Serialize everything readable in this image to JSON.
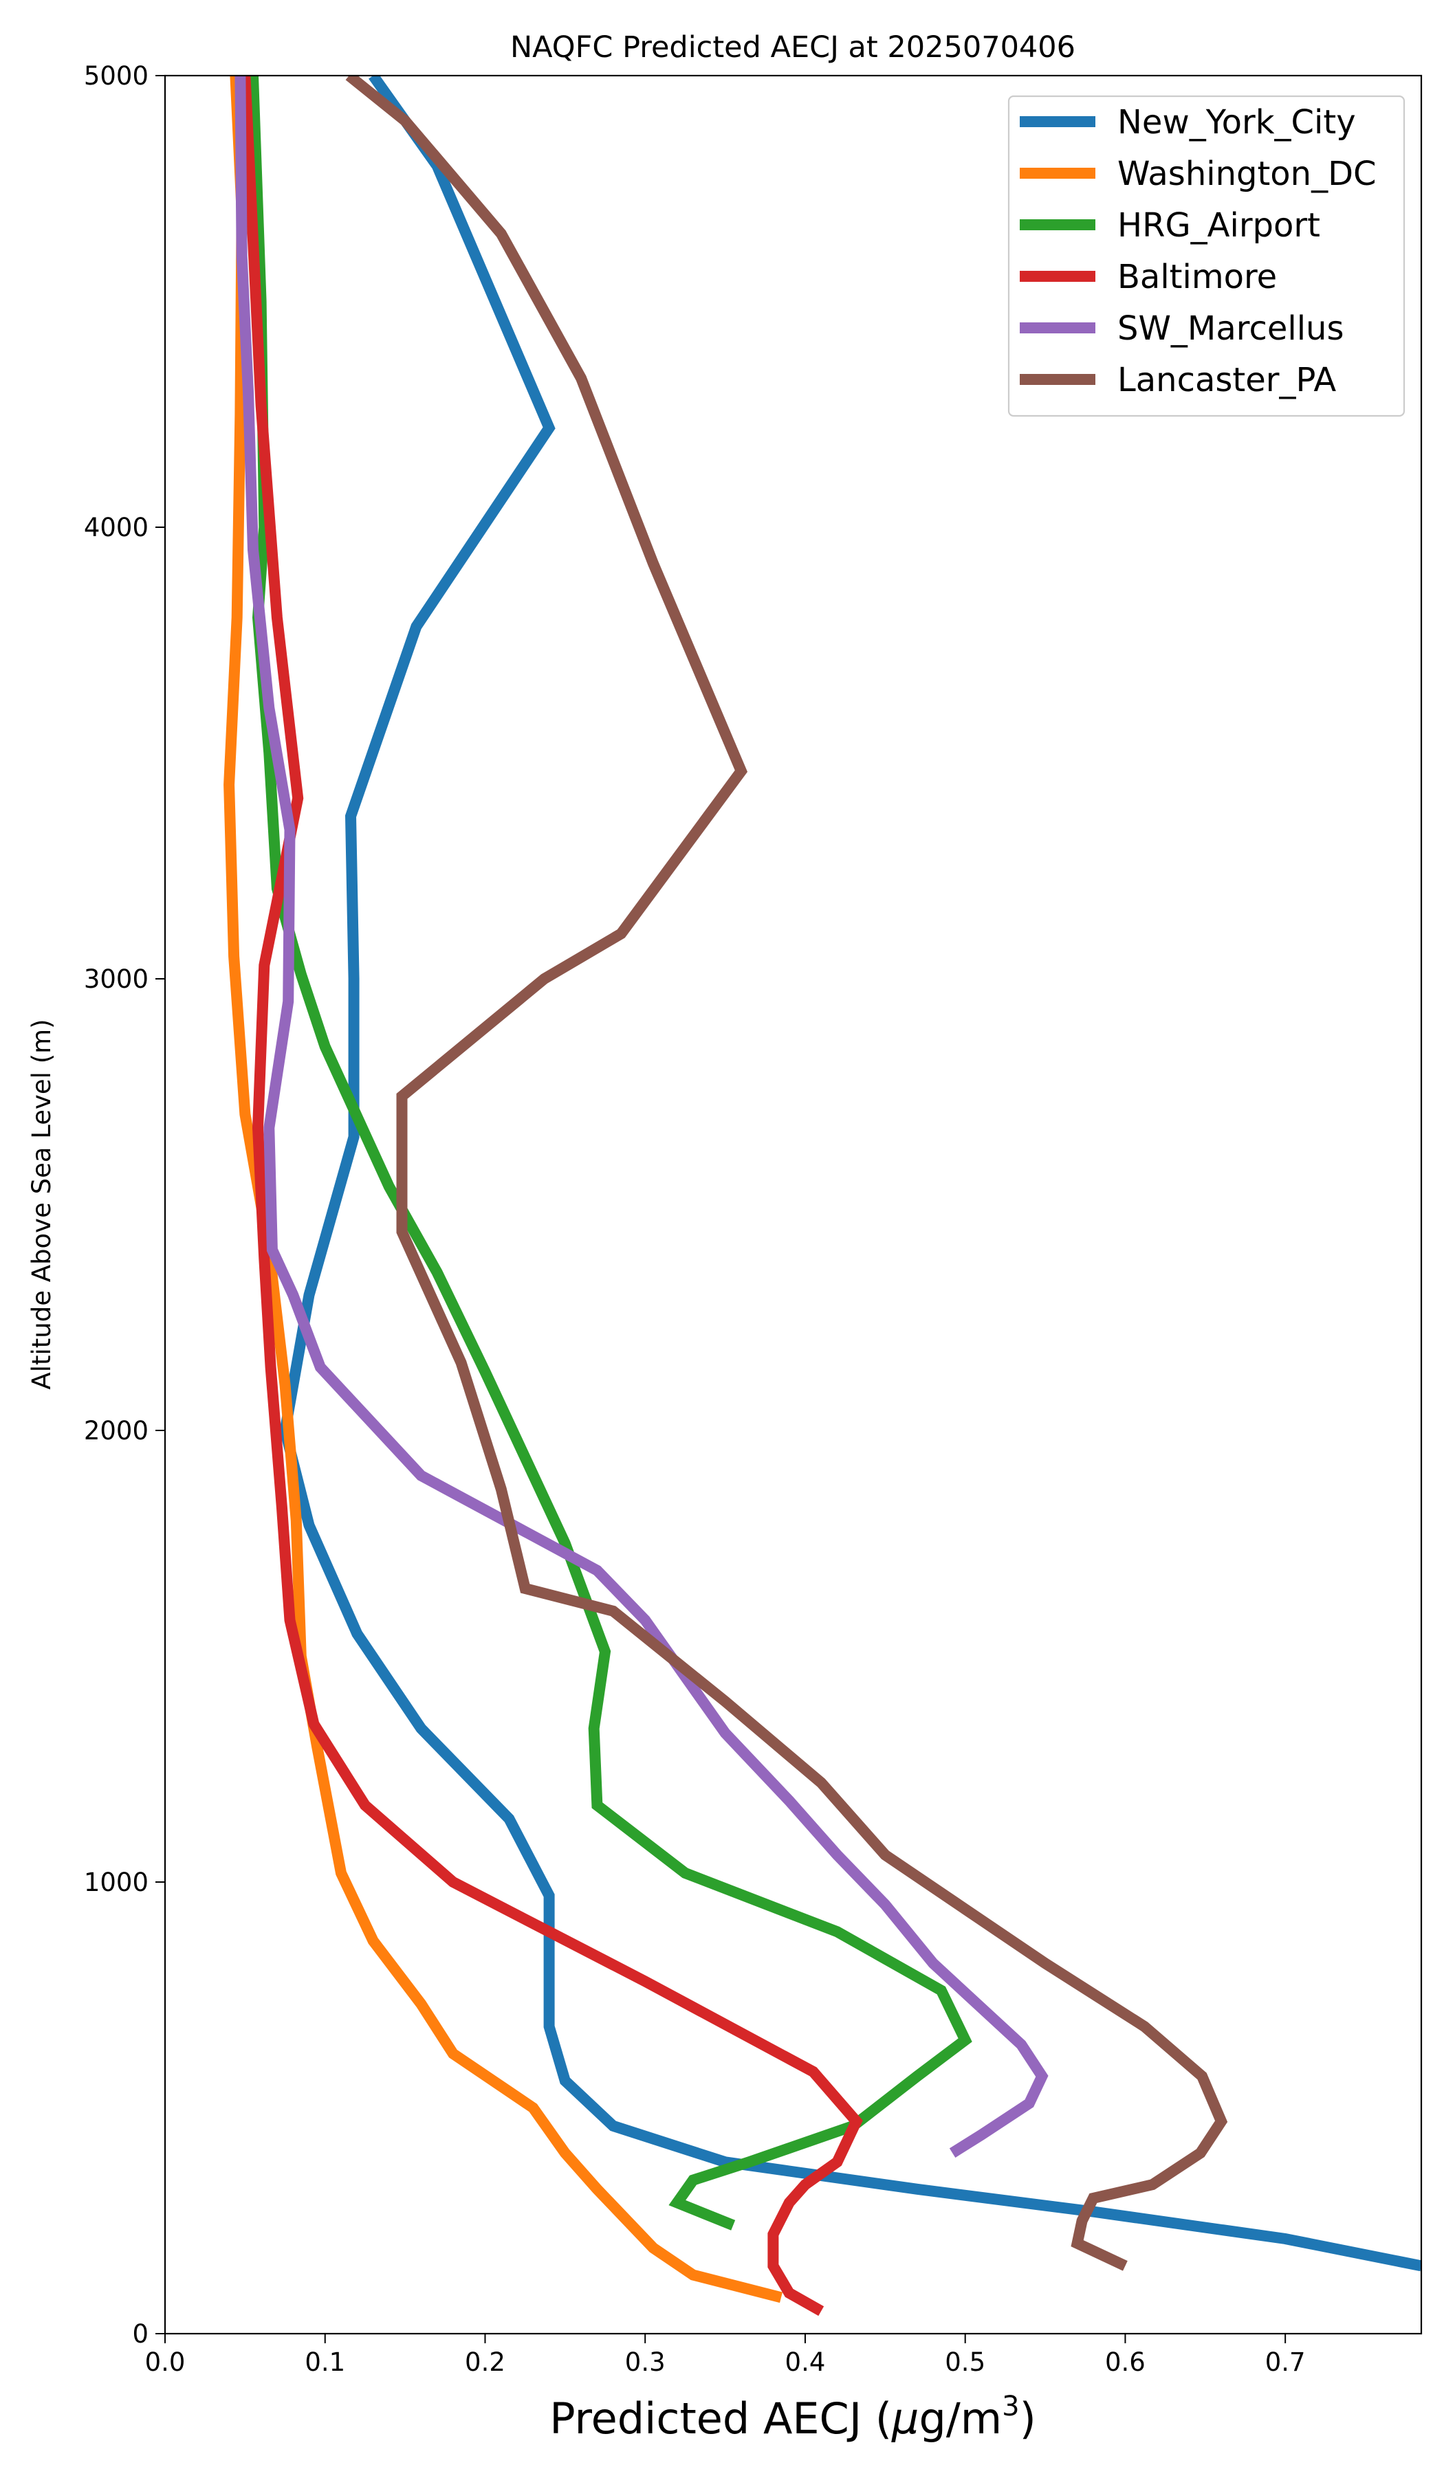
{
  "chart_data": {
    "type": "line",
    "title": "NAQFC Predicted AECJ at 2025070406",
    "xlabel_main": "Predicted AECJ (",
    "xlabel_unit_mu": "μ",
    "xlabel_unit_rest": "g/m",
    "xlabel_unit_sup": "3",
    "xlabel_close": ")",
    "ylabel": "Altitude Above Sea Level (m)",
    "xlim": [
      0.0,
      0.785
    ],
    "ylim": [
      0,
      5000
    ],
    "xticks": [
      0.0,
      0.1,
      0.2,
      0.3,
      0.4,
      0.5,
      0.6,
      0.7
    ],
    "xtick_labels": [
      "0.0",
      "0.1",
      "0.2",
      "0.3",
      "0.4",
      "0.5",
      "0.6",
      "0.7"
    ],
    "yticks": [
      0,
      1000,
      2000,
      3000,
      4000,
      5000
    ],
    "ytick_labels": [
      "0",
      "1000",
      "2000",
      "3000",
      "4000",
      "5000"
    ],
    "grid": false,
    "legend_position": "top-right",
    "series": [
      {
        "name": "New_York_City",
        "color": "#1f77b4",
        "points": [
          [
            0.785,
            150
          ],
          [
            0.7,
            210
          ],
          [
            0.58,
            270
          ],
          [
            0.47,
            320
          ],
          [
            0.39,
            360
          ],
          [
            0.35,
            380
          ],
          [
            0.28,
            460
          ],
          [
            0.25,
            560
          ],
          [
            0.24,
            680
          ],
          [
            0.24,
            860
          ],
          [
            0.24,
            970
          ],
          [
            0.215,
            1140
          ],
          [
            0.16,
            1340
          ],
          [
            0.12,
            1550
          ],
          [
            0.09,
            1790
          ],
          [
            0.075,
            2000
          ],
          [
            0.09,
            2300
          ],
          [
            0.118,
            2650
          ],
          [
            0.118,
            3000
          ],
          [
            0.116,
            3360
          ],
          [
            0.157,
            3780
          ],
          [
            0.24,
            4220
          ],
          [
            0.17,
            4800
          ],
          [
            0.13,
            5000
          ]
        ]
      },
      {
        "name": "Washington_DC",
        "color": "#ff7f0e",
        "points": [
          [
            0.385,
            80
          ],
          [
            0.33,
            130
          ],
          [
            0.305,
            190
          ],
          [
            0.27,
            320
          ],
          [
            0.25,
            400
          ],
          [
            0.23,
            500
          ],
          [
            0.18,
            620
          ],
          [
            0.16,
            730
          ],
          [
            0.13,
            870
          ],
          [
            0.11,
            1020
          ],
          [
            0.095,
            1300
          ],
          [
            0.085,
            1500
          ],
          [
            0.082,
            1800
          ],
          [
            0.075,
            2100
          ],
          [
            0.065,
            2400
          ],
          [
            0.05,
            2700
          ],
          [
            0.043,
            3050
          ],
          [
            0.04,
            3430
          ],
          [
            0.045,
            3800
          ],
          [
            0.047,
            4250
          ],
          [
            0.048,
            4700
          ],
          [
            0.044,
            5000
          ]
        ]
      },
      {
        "name": "HRG_Airport",
        "color": "#2ca02c",
        "points": [
          [
            0.355,
            240
          ],
          [
            0.32,
            290
          ],
          [
            0.33,
            340
          ],
          [
            0.365,
            380
          ],
          [
            0.43,
            460
          ],
          [
            0.47,
            570
          ],
          [
            0.5,
            650
          ],
          [
            0.485,
            760
          ],
          [
            0.42,
            890
          ],
          [
            0.325,
            1020
          ],
          [
            0.27,
            1170
          ],
          [
            0.268,
            1340
          ],
          [
            0.275,
            1510
          ],
          [
            0.25,
            1750
          ],
          [
            0.2,
            2130
          ],
          [
            0.17,
            2350
          ],
          [
            0.14,
            2540
          ],
          [
            0.1,
            2850
          ],
          [
            0.085,
            3010
          ],
          [
            0.07,
            3200
          ],
          [
            0.065,
            3500
          ],
          [
            0.058,
            3800
          ],
          [
            0.062,
            4000
          ],
          [
            0.06,
            4500
          ],
          [
            0.055,
            5000
          ]
        ]
      },
      {
        "name": "Baltimore",
        "color": "#d62728",
        "points": [
          [
            0.41,
            50
          ],
          [
            0.39,
            90
          ],
          [
            0.38,
            150
          ],
          [
            0.38,
            220
          ],
          [
            0.39,
            290
          ],
          [
            0.4,
            330
          ],
          [
            0.42,
            380
          ],
          [
            0.432,
            470
          ],
          [
            0.405,
            580
          ],
          [
            0.3,
            780
          ],
          [
            0.18,
            1000
          ],
          [
            0.125,
            1170
          ],
          [
            0.093,
            1350
          ],
          [
            0.078,
            1580
          ],
          [
            0.073,
            1830
          ],
          [
            0.066,
            2140
          ],
          [
            0.062,
            2380
          ],
          [
            0.058,
            2670
          ],
          [
            0.062,
            3030
          ],
          [
            0.083,
            3400
          ],
          [
            0.07,
            3800
          ],
          [
            0.06,
            4270
          ],
          [
            0.05,
            5000
          ]
        ]
      },
      {
        "name": "SW_Marcellus",
        "color": "#9467bd",
        "points": [
          [
            0.492,
            400
          ],
          [
            0.51,
            440
          ],
          [
            0.54,
            510
          ],
          [
            0.548,
            570
          ],
          [
            0.535,
            640
          ],
          [
            0.48,
            820
          ],
          [
            0.45,
            950
          ],
          [
            0.42,
            1060
          ],
          [
            0.39,
            1180
          ],
          [
            0.35,
            1330
          ],
          [
            0.3,
            1580
          ],
          [
            0.27,
            1690
          ],
          [
            0.16,
            1900
          ],
          [
            0.097,
            2140
          ],
          [
            0.08,
            2300
          ],
          [
            0.067,
            2400
          ],
          [
            0.065,
            2670
          ],
          [
            0.077,
            2950
          ],
          [
            0.078,
            3330
          ],
          [
            0.065,
            3600
          ],
          [
            0.055,
            3950
          ],
          [
            0.052,
            4300
          ],
          [
            0.048,
            4600
          ],
          [
            0.047,
            5000
          ]
        ]
      },
      {
        "name": "Lancaster_PA",
        "color": "#8c564b",
        "points": [
          [
            0.6,
            150
          ],
          [
            0.57,
            200
          ],
          [
            0.573,
            250
          ],
          [
            0.58,
            300
          ],
          [
            0.617,
            330
          ],
          [
            0.647,
            400
          ],
          [
            0.66,
            470
          ],
          [
            0.648,
            570
          ],
          [
            0.612,
            680
          ],
          [
            0.55,
            820
          ],
          [
            0.45,
            1060
          ],
          [
            0.41,
            1220
          ],
          [
            0.35,
            1400
          ],
          [
            0.28,
            1600
          ],
          [
            0.225,
            1650
          ],
          [
            0.21,
            1870
          ],
          [
            0.185,
            2150
          ],
          [
            0.148,
            2440
          ],
          [
            0.148,
            2740
          ],
          [
            0.237,
            3000
          ],
          [
            0.285,
            3100
          ],
          [
            0.36,
            3460
          ],
          [
            0.305,
            3920
          ],
          [
            0.26,
            4330
          ],
          [
            0.21,
            4650
          ],
          [
            0.15,
            4900
          ],
          [
            0.115,
            5000
          ]
        ]
      }
    ]
  }
}
